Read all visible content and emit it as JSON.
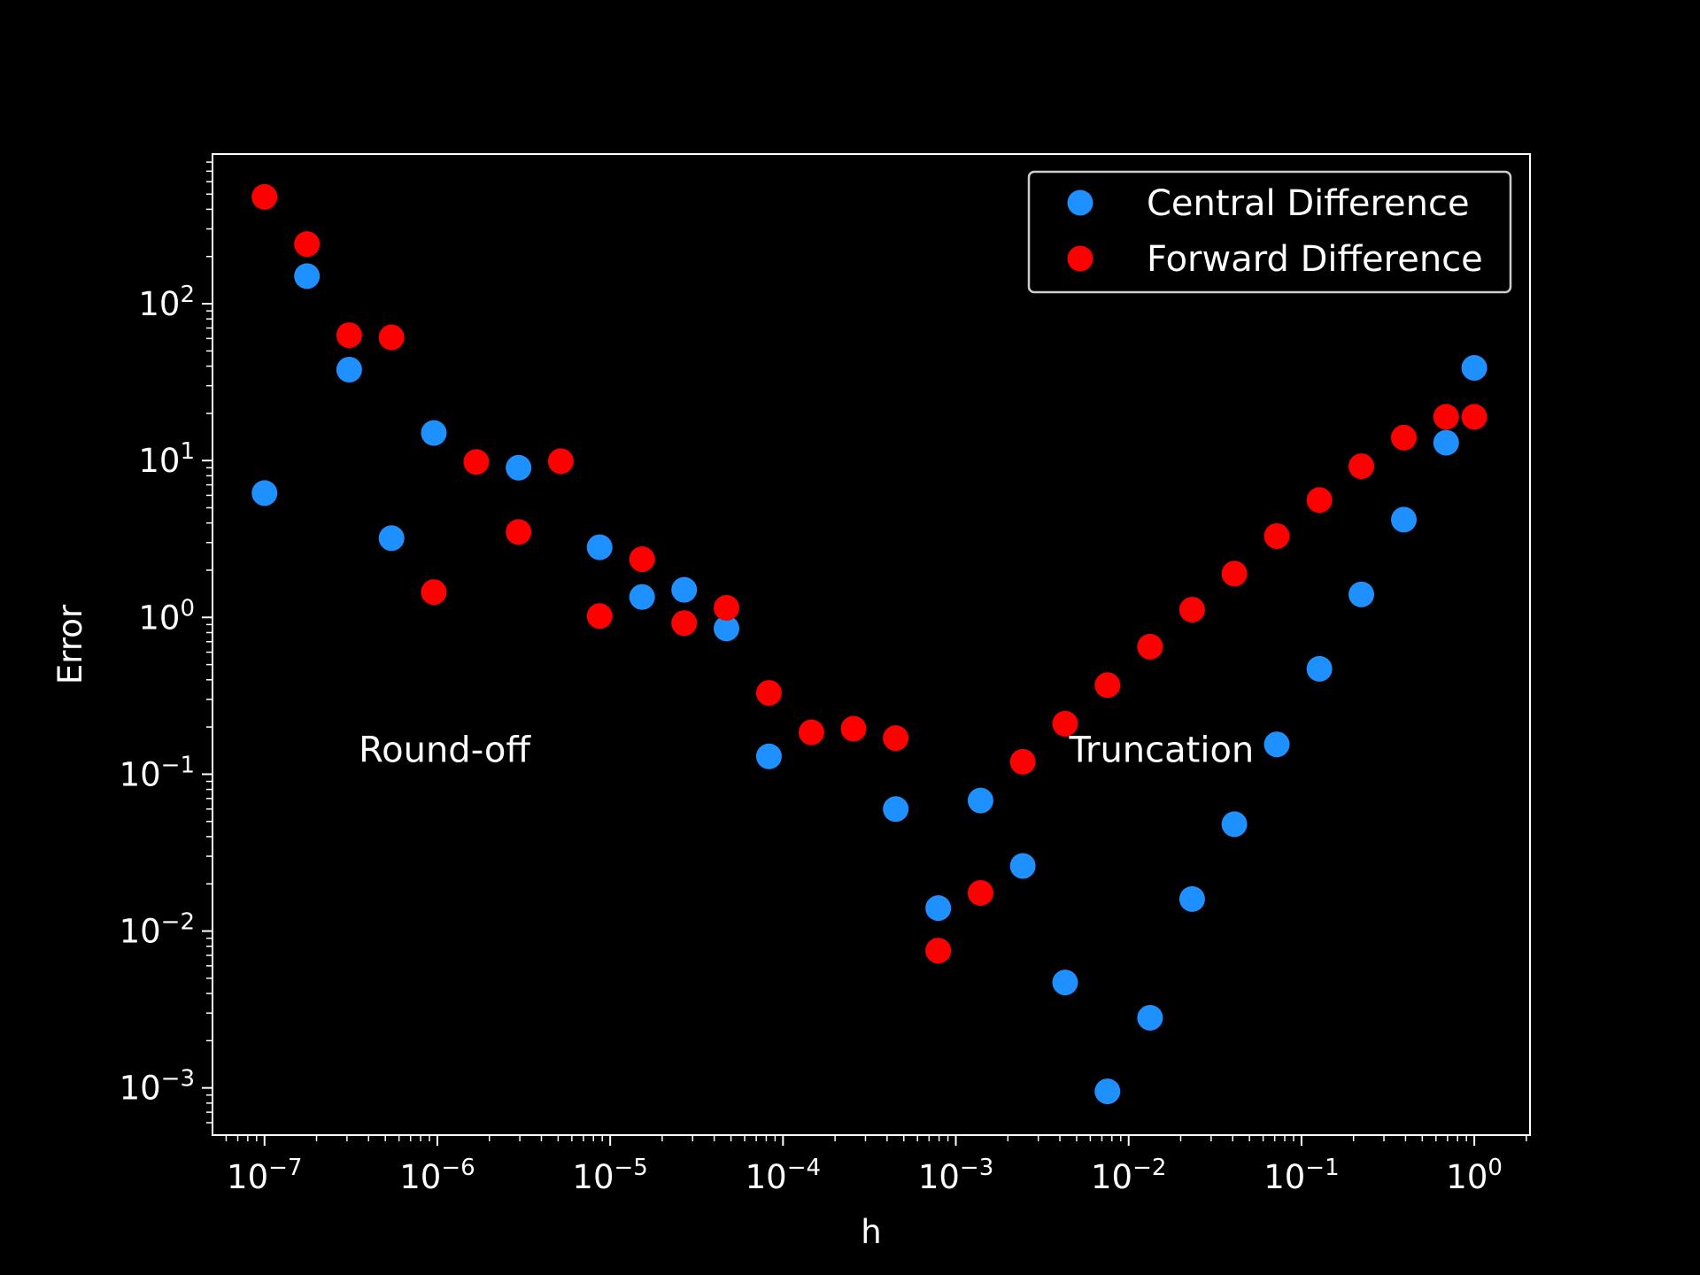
{
  "chart_data": {
    "type": "scatter",
    "xlabel": "h",
    "ylabel": "Error",
    "xscale": "log",
    "yscale": "log",
    "xlim": [
      5e-08,
      2.1
    ],
    "ylim": [
      0.0005,
      900
    ],
    "grid": false,
    "legend_position": "top-right",
    "background": "#000000",
    "x_ticks": [
      {
        "value": 1e-07,
        "mantissa": "10",
        "exp": "−7"
      },
      {
        "value": 1e-06,
        "mantissa": "10",
        "exp": "−6"
      },
      {
        "value": 1e-05,
        "mantissa": "10",
        "exp": "−5"
      },
      {
        "value": 0.0001,
        "mantissa": "10",
        "exp": "−4"
      },
      {
        "value": 0.001,
        "mantissa": "10",
        "exp": "−3"
      },
      {
        "value": 0.01,
        "mantissa": "10",
        "exp": "−2"
      },
      {
        "value": 0.1,
        "mantissa": "10",
        "exp": "−1"
      },
      {
        "value": 1,
        "mantissa": "10",
        "exp": "0"
      }
    ],
    "y_ticks": [
      {
        "value": 0.001,
        "mantissa": "10",
        "exp": "−3"
      },
      {
        "value": 0.01,
        "mantissa": "10",
        "exp": "−2"
      },
      {
        "value": 0.1,
        "mantissa": "10",
        "exp": "−1"
      },
      {
        "value": 1,
        "mantissa": "10",
        "exp": "0"
      },
      {
        "value": 10,
        "mantissa": "10",
        "exp": "1"
      },
      {
        "value": 100,
        "mantissa": "10",
        "exp": "2"
      }
    ],
    "series": [
      {
        "name": "Central Difference",
        "color": "#1e90ff",
        "points": [
          [
            1e-07,
            6.2
          ],
          [
            1.76e-07,
            150
          ],
          [
            3.09e-07,
            38
          ],
          [
            5.43e-07,
            3.2
          ],
          [
            9.54e-07,
            15
          ],
          [
            2.95e-06,
            9.0
          ],
          [
            8.69e-06,
            2.8
          ],
          [
            1.53e-05,
            1.35
          ],
          [
            2.68e-05,
            1.5
          ],
          [
            4.71e-05,
            0.85
          ],
          [
            8.29e-05,
            0.13
          ],
          [
            0.000449,
            0.06
          ],
          [
            0.000791,
            0.014
          ],
          [
            0.00139,
            0.068
          ],
          [
            0.00244,
            0.026
          ],
          [
            0.00429,
            0.0047
          ],
          [
            0.00754,
            0.00095
          ],
          [
            0.0133,
            0.0028
          ],
          [
            0.0233,
            0.016
          ],
          [
            0.0409,
            0.048
          ],
          [
            0.072,
            0.155
          ],
          [
            0.127,
            0.47
          ],
          [
            0.222,
            1.4
          ],
          [
            0.391,
            4.2
          ],
          [
            0.687,
            13
          ],
          [
            1.0,
            39
          ]
        ]
      },
      {
        "name": "Forward Difference",
        "color": "#ff0000",
        "points": [
          [
            1e-07,
            480
          ],
          [
            1.76e-07,
            240
          ],
          [
            3.09e-07,
            63
          ],
          [
            5.43e-07,
            61
          ],
          [
            9.54e-07,
            1.45
          ],
          [
            1.68e-06,
            9.8
          ],
          [
            2.95e-06,
            3.5
          ],
          [
            5.18e-06,
            9.9
          ],
          [
            8.69e-06,
            1.02
          ],
          [
            1.53e-05,
            2.35
          ],
          [
            2.68e-05,
            0.92
          ],
          [
            4.71e-05,
            1.15
          ],
          [
            8.29e-05,
            0.33
          ],
          [
            0.000146,
            0.185
          ],
          [
            0.000256,
            0.195
          ],
          [
            0.000449,
            0.17
          ],
          [
            0.000791,
            0.0075
          ],
          [
            0.00139,
            0.0175
          ],
          [
            0.00244,
            0.12
          ],
          [
            0.00429,
            0.21
          ],
          [
            0.00754,
            0.37
          ],
          [
            0.0133,
            0.65
          ],
          [
            0.0233,
            1.12
          ],
          [
            0.0409,
            1.9
          ],
          [
            0.072,
            3.3
          ],
          [
            0.127,
            5.6
          ],
          [
            0.222,
            9.2
          ],
          [
            0.391,
            14
          ],
          [
            0.687,
            19
          ],
          [
            1.0,
            19
          ]
        ]
      }
    ],
    "annotations": [
      {
        "text": "Round-off",
        "x": 1.1e-06,
        "y": 0.12
      },
      {
        "text": "Truncation",
        "x": 0.0155,
        "y": 0.12
      }
    ]
  }
}
